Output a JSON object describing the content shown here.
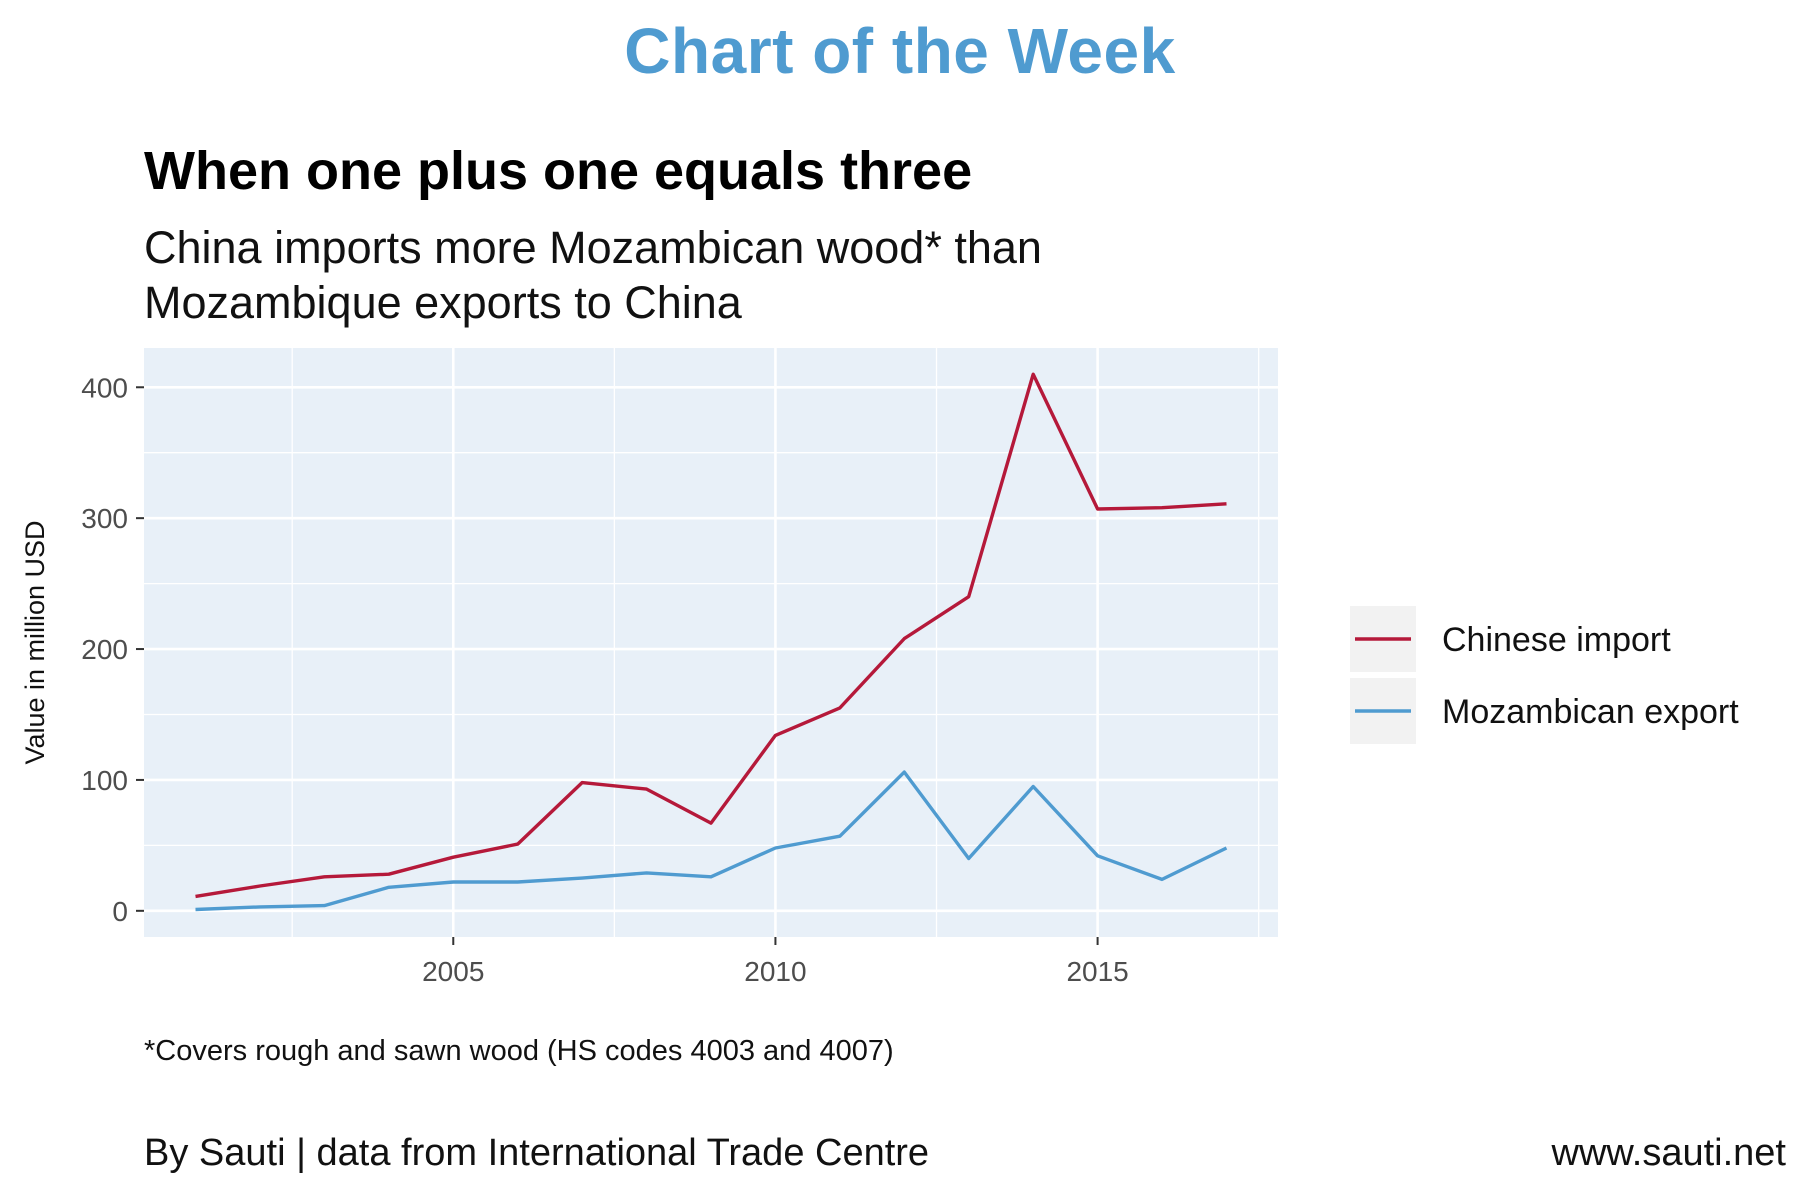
{
  "banner": "Chart of the Week",
  "title": "When one plus one equals three",
  "subtitle": "China imports more Mozambican wood* than Mozambique exports to China",
  "caption": "*Covers rough and sawn wood (HS codes 4003 and 4007)",
  "footer": {
    "source": "By Sauti | data from International Trade Centre",
    "website": "www.sauti.net"
  },
  "colors": {
    "banner": "#4f9bd0",
    "panel_background": "#e8f0f8",
    "gridline": "#ffffff",
    "legend_key_background": "#f2f2f2"
  },
  "chart_data": {
    "type": "line",
    "xlabel": "",
    "ylabel": "Value in million USD",
    "xlim": [
      2000.2,
      2017.8
    ],
    "ylim": [
      -20,
      430
    ],
    "x_ticks": [
      2005,
      2010,
      2015
    ],
    "y_ticks": [
      0,
      100,
      200,
      300,
      400
    ],
    "grid": true,
    "legend_position": "right",
    "series": [
      {
        "name": "Chinese import",
        "color": "#b5193a",
        "x": [
          2001,
          2002,
          2003,
          2004,
          2005,
          2006,
          2007,
          2008,
          2009,
          2010,
          2011,
          2012,
          2013,
          2014,
          2015,
          2016,
          2017
        ],
        "values": [
          11,
          19,
          26,
          28,
          41,
          51,
          98,
          93,
          67,
          134,
          155,
          208,
          240,
          410,
          307,
          308,
          311
        ]
      },
      {
        "name": "Mozambican export",
        "color": "#4f9bd0",
        "x": [
          2001,
          2002,
          2003,
          2004,
          2005,
          2006,
          2007,
          2008,
          2009,
          2010,
          2011,
          2012,
          2013,
          2014,
          2015,
          2016,
          2017
        ],
        "values": [
          1,
          3,
          4,
          18,
          22,
          22,
          25,
          29,
          26,
          48,
          57,
          106,
          40,
          95,
          42,
          24,
          48
        ]
      }
    ]
  }
}
